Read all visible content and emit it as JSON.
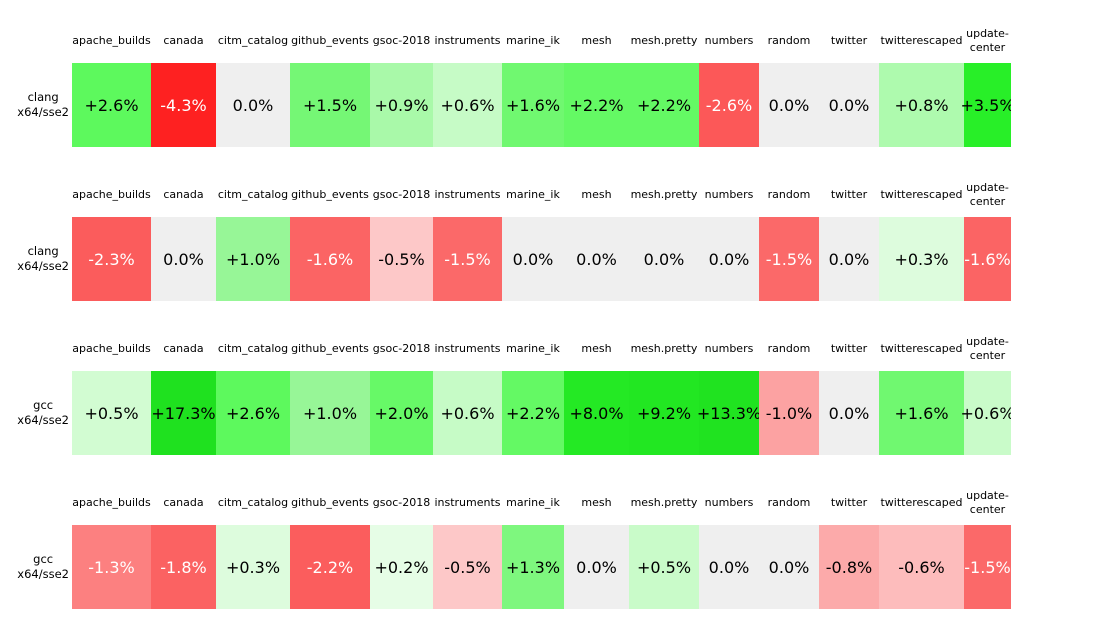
{
  "chart_data": {
    "type": "heatmap",
    "columns": [
      "apache_builds",
      "canada",
      "citm_catalog",
      "github_events",
      "gsoc-2018",
      "instruments",
      "marine_ik",
      "mesh",
      "mesh.pretty",
      "numbers",
      "random",
      "twitter",
      "twitterescaped",
      "update-center"
    ],
    "rows": [
      {
        "label": "clang x64/sse2",
        "values_pct": [
          2.6,
          -4.3,
          0.0,
          1.5,
          0.9,
          0.6,
          1.6,
          2.2,
          2.2,
          -2.6,
          0.0,
          0.0,
          0.8,
          3.5
        ]
      },
      {
        "label": "clang x64/sse2",
        "values_pct": [
          -2.3,
          0.0,
          1.0,
          -1.6,
          -0.5,
          -1.5,
          0.0,
          0.0,
          0.0,
          0.0,
          -1.5,
          0.0,
          0.3,
          -1.6
        ]
      },
      {
        "label": "gcc x64/sse2",
        "values_pct": [
          0.5,
          17.3,
          2.6,
          1.0,
          2.0,
          0.6,
          2.2,
          8.0,
          9.2,
          13.3,
          -1.0,
          0.0,
          1.6,
          0.6
        ]
      },
      {
        "label": "gcc x64/sse2",
        "values_pct": [
          -1.3,
          -1.8,
          0.3,
          -2.2,
          0.2,
          -0.5,
          1.3,
          0.0,
          0.5,
          0.0,
          0.0,
          -0.8,
          -0.6,
          -1.5
        ]
      }
    ],
    "value_unit": "%",
    "positive_color": "green",
    "negative_color": "red",
    "zero_color": "#efefef"
  },
  "strips": [
    {
      "label_line1": "clang",
      "label_line2": "x64/sse2",
      "headers": [
        "apache_builds",
        "canada",
        "citm_catalog",
        "github_events",
        "gsoc-2018",
        "instruments",
        "marine_ik",
        "mesh",
        "mesh.pretty",
        "numbers",
        "random",
        "twitter",
        "twitterescaped",
        "update-center"
      ],
      "cells": [
        {
          "text": "+2.6%",
          "bg": "#5df95d",
          "fg": "#000000"
        },
        {
          "text": "-4.3%",
          "bg": "#fe2121",
          "fg": "#ffffff"
        },
        {
          "text": "0.0%",
          "bg": "#efefef",
          "fg": "#000000"
        },
        {
          "text": "+1.5%",
          "bg": "#75f775",
          "fg": "#000000"
        },
        {
          "text": "+0.9%",
          "bg": "#a9f9a9",
          "fg": "#000000"
        },
        {
          "text": "+0.6%",
          "bg": "#c6fbc6",
          "fg": "#000000"
        },
        {
          "text": "+1.6%",
          "bg": "#70f870",
          "fg": "#000000"
        },
        {
          "text": "+2.2%",
          "bg": "#64f964",
          "fg": "#000000"
        },
        {
          "text": "+2.2%",
          "bg": "#64f964",
          "fg": "#000000"
        },
        {
          "text": "-2.6%",
          "bg": "#fc5858",
          "fg": "#ffffff"
        },
        {
          "text": "0.0%",
          "bg": "#efefef",
          "fg": "#000000"
        },
        {
          "text": "0.0%",
          "bg": "#efefef",
          "fg": "#000000"
        },
        {
          "text": "+0.8%",
          "bg": "#aefaae",
          "fg": "#000000"
        },
        {
          "text": "+3.5%",
          "bg": "#28ef28",
          "fg": "#000000"
        }
      ]
    },
    {
      "label_line1": "clang",
      "label_line2": "x64/sse2",
      "headers": [
        "apache_builds",
        "canada",
        "citm_catalog",
        "github_events",
        "gsoc-2018",
        "instruments",
        "marine_ik",
        "mesh",
        "mesh.pretty",
        "numbers",
        "random",
        "twitter",
        "twitterescaped",
        "update-center"
      ],
      "cells": [
        {
          "text": "-2.3%",
          "bg": "#fb5c5c",
          "fg": "#ffffff"
        },
        {
          "text": "0.0%",
          "bg": "#efefef",
          "fg": "#000000"
        },
        {
          "text": "+1.0%",
          "bg": "#97f697",
          "fg": "#000000"
        },
        {
          "text": "-1.6%",
          "bg": "#fb6464",
          "fg": "#ffffff"
        },
        {
          "text": "-0.5%",
          "bg": "#fdc8c8",
          "fg": "#000000"
        },
        {
          "text": "-1.5%",
          "bg": "#fb6969",
          "fg": "#ffffff"
        },
        {
          "text": "0.0%",
          "bg": "#efefef",
          "fg": "#000000"
        },
        {
          "text": "0.0%",
          "bg": "#efefef",
          "fg": "#000000"
        },
        {
          "text": "0.0%",
          "bg": "#efefef",
          "fg": "#000000"
        },
        {
          "text": "0.0%",
          "bg": "#efefef",
          "fg": "#000000"
        },
        {
          "text": "-1.5%",
          "bg": "#fb6969",
          "fg": "#ffffff"
        },
        {
          "text": "0.0%",
          "bg": "#efefef",
          "fg": "#000000"
        },
        {
          "text": "+0.3%",
          "bg": "#ddfcdd",
          "fg": "#000000"
        },
        {
          "text": "-1.6%",
          "bg": "#fb6464",
          "fg": "#ffffff"
        }
      ]
    },
    {
      "label_line1": "gcc",
      "label_line2": "x64/sse2",
      "headers": [
        "apache_builds",
        "canada",
        "citm_catalog",
        "github_events",
        "gsoc-2018",
        "instruments",
        "marine_ik",
        "mesh",
        "mesh.pretty",
        "numbers",
        "random",
        "twitter",
        "twitterescaped",
        "update-center"
      ],
      "cells": [
        {
          "text": "+0.5%",
          "bg": "#d2fcd2",
          "fg": "#000000"
        },
        {
          "text": "+17.3%",
          "bg": "#1fe11f",
          "fg": "#000000"
        },
        {
          "text": "+2.6%",
          "bg": "#5df95d",
          "fg": "#000000"
        },
        {
          "text": "+1.0%",
          "bg": "#97f697",
          "fg": "#000000"
        },
        {
          "text": "+2.0%",
          "bg": "#67f967",
          "fg": "#000000"
        },
        {
          "text": "+0.6%",
          "bg": "#c6fbc6",
          "fg": "#000000"
        },
        {
          "text": "+2.2%",
          "bg": "#64f964",
          "fg": "#000000"
        },
        {
          "text": "+8.0%",
          "bg": "#24e924",
          "fg": "#000000"
        },
        {
          "text": "+9.2%",
          "bg": "#22e722",
          "fg": "#000000"
        },
        {
          "text": "+13.3%",
          "bg": "#20e320",
          "fg": "#000000"
        },
        {
          "text": "-1.0%",
          "bg": "#fca2a2",
          "fg": "#000000"
        },
        {
          "text": "0.0%",
          "bg": "#efefef",
          "fg": "#000000"
        },
        {
          "text": "+1.6%",
          "bg": "#70f870",
          "fg": "#000000"
        },
        {
          "text": "+0.6%",
          "bg": "#c9fbc9",
          "fg": "#000000"
        }
      ]
    },
    {
      "label_line1": "gcc",
      "label_line2": "x64/sse2",
      "headers": [
        "apache_builds",
        "canada",
        "citm_catalog",
        "github_events",
        "gsoc-2018",
        "instruments",
        "marine_ik",
        "mesh",
        "mesh.pretty",
        "numbers",
        "random",
        "twitter",
        "twitterescaped",
        "update-center"
      ],
      "cells": [
        {
          "text": "-1.3%",
          "bg": "#fc8080",
          "fg": "#ffffff"
        },
        {
          "text": "-1.8%",
          "bg": "#fb6262",
          "fg": "#ffffff"
        },
        {
          "text": "+0.3%",
          "bg": "#ddfcdd",
          "fg": "#000000"
        },
        {
          "text": "-2.2%",
          "bg": "#fb5d5d",
          "fg": "#ffffff"
        },
        {
          "text": "+0.2%",
          "bg": "#e6fde6",
          "fg": "#000000"
        },
        {
          "text": "-0.5%",
          "bg": "#fdc8c8",
          "fg": "#000000"
        },
        {
          "text": "+1.3%",
          "bg": "#7ef77e",
          "fg": "#000000"
        },
        {
          "text": "0.0%",
          "bg": "#efefef",
          "fg": "#000000"
        },
        {
          "text": "+0.5%",
          "bg": "#c9fbc9",
          "fg": "#000000"
        },
        {
          "text": "0.0%",
          "bg": "#efefef",
          "fg": "#000000"
        },
        {
          "text": "0.0%",
          "bg": "#efefef",
          "fg": "#000000"
        },
        {
          "text": "-0.8%",
          "bg": "#fcaaaa",
          "fg": "#000000"
        },
        {
          "text": "-0.6%",
          "bg": "#fdbcbc",
          "fg": "#000000"
        },
        {
          "text": "-1.5%",
          "bg": "#fb6969",
          "fg": "#ffffff"
        }
      ]
    }
  ]
}
